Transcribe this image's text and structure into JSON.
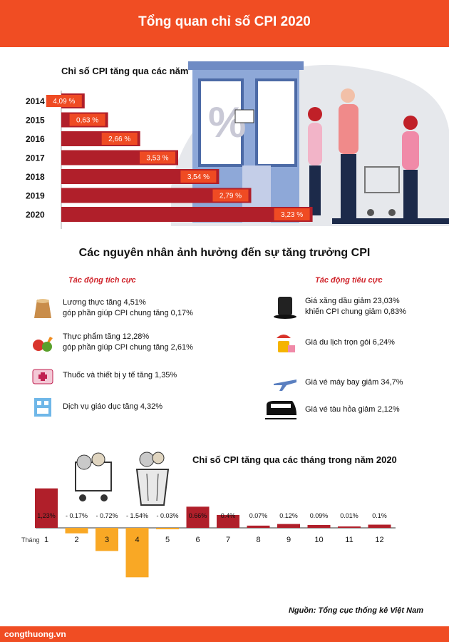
{
  "header": {
    "title": "Tổng quan chỉ số CPI 2020"
  },
  "yearly_section": {
    "title": "Chỉ số CPI tăng qua các năm"
  },
  "causes_section": {
    "title": "Các nguyên nhân ảnh hưởng đến sự tăng trưởng CPI",
    "positive_heading": "Tác động tích cực",
    "negative_heading": "Tác động tiêu cực",
    "positive": [
      {
        "icon": "rice-sack-icon",
        "line1": "Lương thực tăng 4,51%",
        "line2": "góp phần giúp CPI chung tăng 0,17%"
      },
      {
        "icon": "vegetables-icon",
        "line1": "Thực phẩm tăng 12,28%",
        "line2": "góp phần giúp CPI chung tăng 2,61%"
      },
      {
        "icon": "medical-kit-icon",
        "line1": "Thuốc và thiết bị y tế tăng 1,35%",
        "line2": ""
      },
      {
        "icon": "education-icon",
        "line1": "Dịch vụ giáo dục tăng 4,32%",
        "line2": ""
      }
    ],
    "negative": [
      {
        "icon": "oil-barrel-icon",
        "line1": "Giá xăng dầu giảm 23,03%",
        "line2": "khiến CPI chung giảm 0,83%"
      },
      {
        "icon": "travel-luggage-icon",
        "line1": "Giá du lịch trọn gói 6,24%",
        "line2": ""
      },
      {
        "icon": "airplane-icon",
        "line1": "Giá vé máy bay giảm 34,7%",
        "line2": ""
      },
      {
        "icon": "train-icon",
        "line1": "Giá vé tàu hỏa giảm 2,12%",
        "line2": ""
      }
    ]
  },
  "monthly_section": {
    "title": "Chỉ số CPI tăng qua các tháng trong năm 2020"
  },
  "source": "Nguồn: Tổng cục thống kê Việt Nam",
  "footer": {
    "site": "congthuong.vn"
  },
  "colors": {
    "accent": "#f04d23",
    "bar_dark": "#b01f2a",
    "bar_neg": "#f9a825",
    "label_box": "#ef4b23"
  },
  "chart_data": [
    {
      "type": "bar",
      "orientation": "horizontal",
      "title": "Chỉ số CPI tăng qua các năm",
      "categories": [
        "2014",
        "2015",
        "2016",
        "2017",
        "2018",
        "2019",
        "2020"
      ],
      "values": [
        4.09,
        0.63,
        2.66,
        3.53,
        3.54,
        2.79,
        3.23
      ],
      "value_labels": [
        "4,09 %",
        "0,63 %",
        "2,66 %",
        "3,53 %",
        "3,54 %",
        "2,79 %",
        "3,23 %"
      ],
      "bar_extent": [
        0.8,
        1.6,
        2.7,
        4.0,
        5.4,
        6.5,
        8.6
      ]
    },
    {
      "type": "bar",
      "title": "Chỉ số CPI tăng qua các tháng trong năm 2020",
      "x_prefix": "Tháng",
      "categories": [
        "1",
        "2",
        "3",
        "4",
        "5",
        "6",
        "7",
        "8",
        "9",
        "10",
        "11",
        "12"
      ],
      "values": [
        1.23,
        -0.17,
        -0.72,
        -1.54,
        -0.03,
        0.66,
        0.4,
        0.07,
        0.12,
        0.09,
        0.01,
        0.1
      ],
      "value_labels": [
        "1,23%",
        "- 0.17%",
        "- 0.72%",
        "- 1.54%",
        "- 0.03%",
        "0.66%",
        "0.4%",
        "0.07%",
        "0.12%",
        "0.09%",
        "0.01%",
        "0.1%"
      ]
    }
  ]
}
